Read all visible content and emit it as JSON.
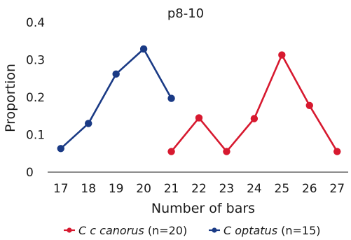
{
  "chart_data": {
    "type": "line",
    "title": "p8-10",
    "xlabel": "Number of bars",
    "ylabel": "Proportion",
    "x_ticks": [
      "17",
      "18",
      "19",
      "20",
      "21",
      "22",
      "23",
      "24",
      "25",
      "26",
      "27"
    ],
    "y_ticks": [
      "0",
      "0.1",
      "0.2",
      "0.3",
      "0.4"
    ],
    "xlim": [
      16.6,
      27.4
    ],
    "ylim": [
      0,
      0.4
    ],
    "grid": false,
    "legend_position": "bottom",
    "series": [
      {
        "name_italic": "C c canorus",
        "name_suffix": " (n=20)",
        "color": "#d7192f",
        "x": [
          21,
          22,
          23,
          24,
          25,
          26,
          27
        ],
        "y": [
          0.055,
          0.145,
          0.055,
          0.143,
          0.313,
          0.178,
          0.055
        ]
      },
      {
        "name_italic": "C optatus",
        "name_suffix": " (n=15)",
        "color": "#1a3a85",
        "x": [
          17,
          18,
          19,
          20,
          21
        ],
        "y": [
          0.063,
          0.13,
          0.262,
          0.329,
          0.197
        ]
      }
    ]
  }
}
